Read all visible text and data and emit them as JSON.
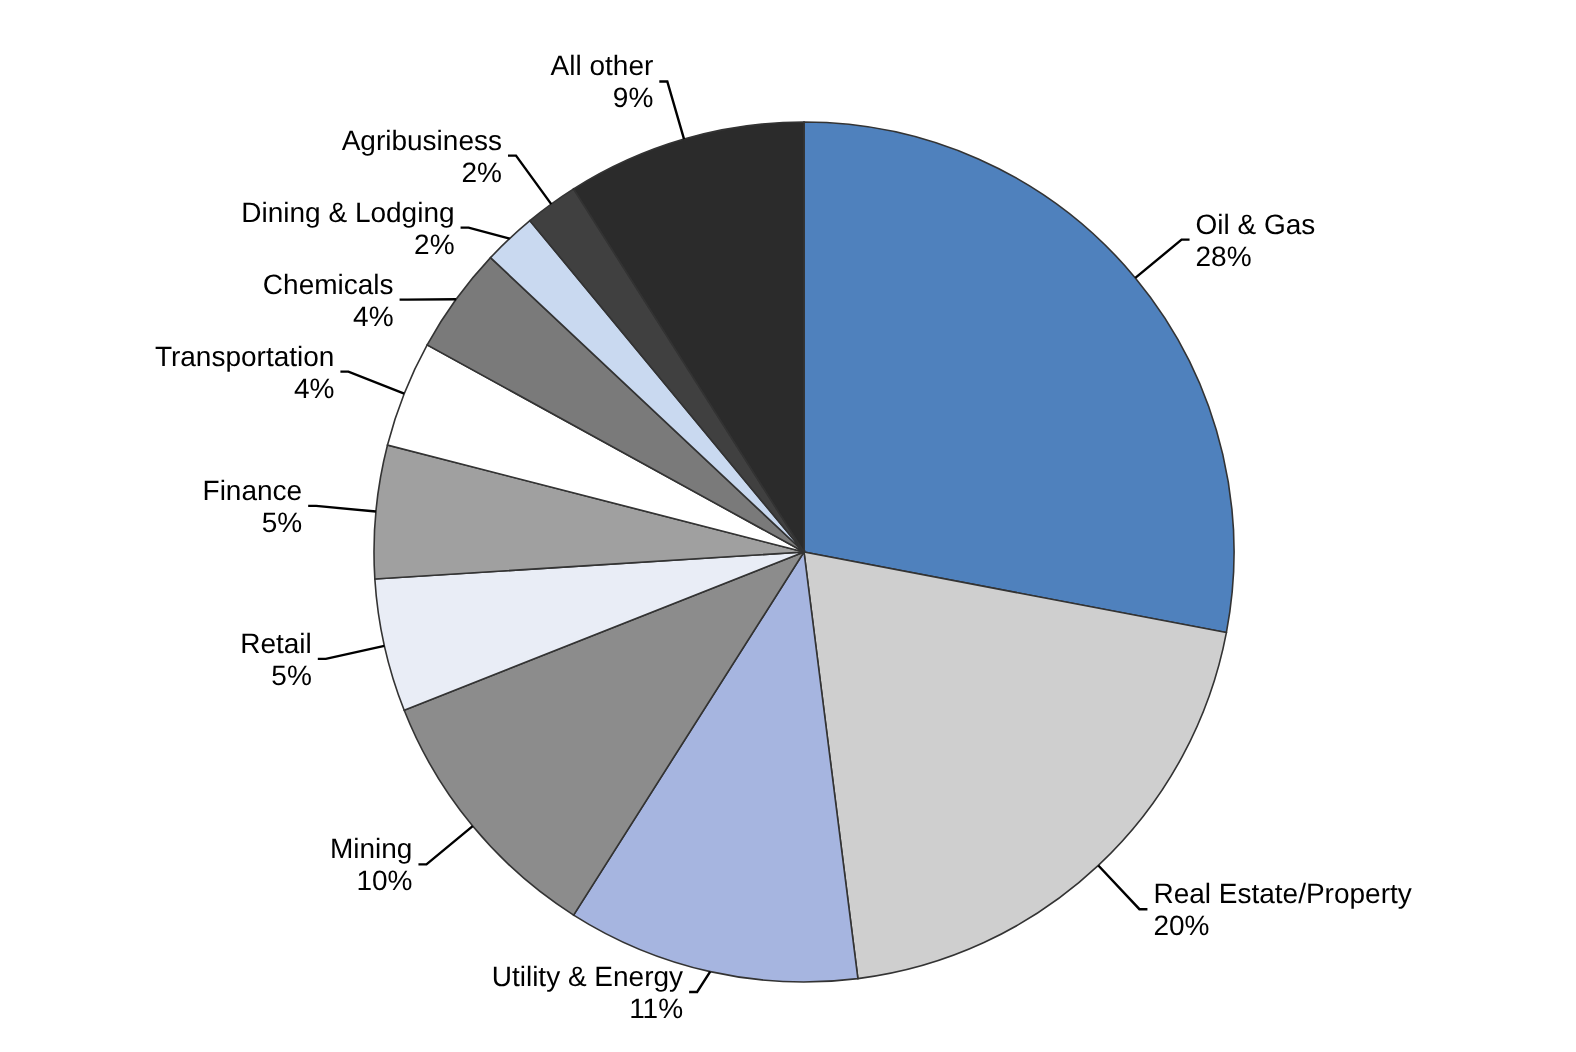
{
  "chart_data": {
    "type": "pie",
    "categories": [
      "Oil & Gas",
      "Real Estate/Property",
      "Utility & Energy",
      "Mining",
      "Retail",
      "Finance",
      "Transportation",
      "Chemicals",
      "Dining & Lodging",
      "Agribusiness",
      "All other"
    ],
    "values": [
      28,
      20,
      11,
      10,
      5,
      5,
      4,
      4,
      2,
      2,
      9
    ],
    "value_labels": [
      "28%",
      "20%",
      "11%",
      "10%",
      "5%",
      "5%",
      "4%",
      "4%",
      "2%",
      "2%",
      "9%"
    ],
    "colors": [
      "#4f81bd",
      "#cfcfcf",
      "#a6b5e0",
      "#8c8c8c",
      "#e9edf6",
      "#a0a0a0",
      "#ffffff",
      "#7a7a7a",
      "#c9d9f0",
      "#404040",
      "#2b2b2b"
    ]
  }
}
